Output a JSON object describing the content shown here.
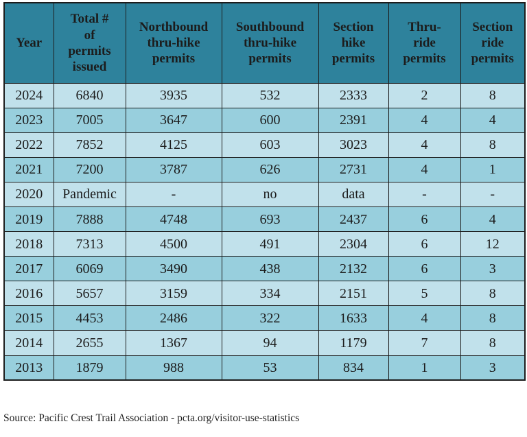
{
  "colors": {
    "header_bg": "#2E829C",
    "row_light": "#C1E1EB",
    "row_dark": "#98CFDD",
    "border": "#1C1C1C",
    "text": "#1C1C1C"
  },
  "chart_data": {
    "type": "table",
    "columns": [
      "Year",
      "Total #\nof\npermits\nissued",
      "Northbound\nthru-hike\npermits",
      "Southbound\nthru-hike\npermits",
      "Section\nhike\npermits",
      "Thru-\nride\npermits",
      "Section\nride\npermits"
    ],
    "rows": [
      [
        "2024",
        "6840",
        "3935",
        "532",
        "2333",
        "2",
        "8"
      ],
      [
        "2023",
        "7005",
        "3647",
        "600",
        "2391",
        "4",
        "4"
      ],
      [
        "2022",
        "7852",
        "4125",
        "603",
        "3023",
        "4",
        "8"
      ],
      [
        "2021",
        "7200",
        "3787",
        "626",
        "2731",
        "4",
        "1"
      ],
      [
        "2020",
        "Pandemic",
        "-",
        "no",
        "data",
        "-",
        "-"
      ],
      [
        "2019",
        "7888",
        "4748",
        "693",
        "2437",
        "6",
        "4"
      ],
      [
        "2018",
        "7313",
        "4500",
        "491",
        "2304",
        "6",
        "12"
      ],
      [
        "2017",
        "6069",
        "3490",
        "438",
        "2132",
        "6",
        "3"
      ],
      [
        "2016",
        "5657",
        "3159",
        "334",
        "2151",
        "5",
        "8"
      ],
      [
        "2015",
        "4453",
        "2486",
        "322",
        "1633",
        "4",
        "8"
      ],
      [
        "2014",
        "2655",
        "1367",
        "94",
        "1179",
        "7",
        "8"
      ],
      [
        "2013",
        "1879",
        "988",
        "53",
        "834",
        "1",
        "3"
      ]
    ],
    "title": "",
    "source": "Source: Pacific Crest Trail Association - pcta.org/visitor-use-statistics"
  },
  "footer": {
    "source_text": "Source: Pacific Crest Trail Association - pcta.org/visitor-use-statistics"
  }
}
